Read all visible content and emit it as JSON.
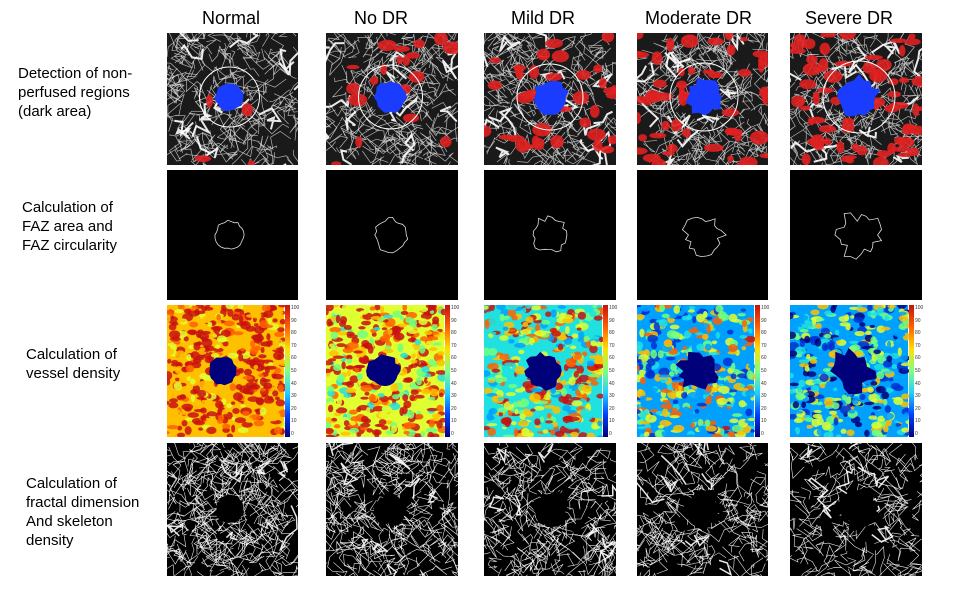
{
  "columns": [
    "Normal",
    "No DR",
    "Mild DR",
    "Moderate DR",
    "Severe DR"
  ],
  "rows": [
    {
      "label": "Detection of non-\nperfused regions\n(dark area)",
      "kind": "perfusion"
    },
    {
      "label": "Calculation of\nFAZ area and\nFAZ circularity",
      "kind": "faz"
    },
    {
      "label": "Calculation of\nvessel density",
      "kind": "density"
    },
    {
      "label": "Calculation of\nfractal dimension\nAnd skeleton\ndensity",
      "kind": "skeleton"
    }
  ],
  "colorbar_ticks": [
    "100",
    "90",
    "80",
    "70",
    "60",
    "50",
    "40",
    "30",
    "20",
    "10",
    "0"
  ],
  "colors": {
    "nonperfused": "#e02020",
    "faz_fill": "#1a3cff",
    "density_high": "#c81010",
    "density_low": "#00007a"
  }
}
